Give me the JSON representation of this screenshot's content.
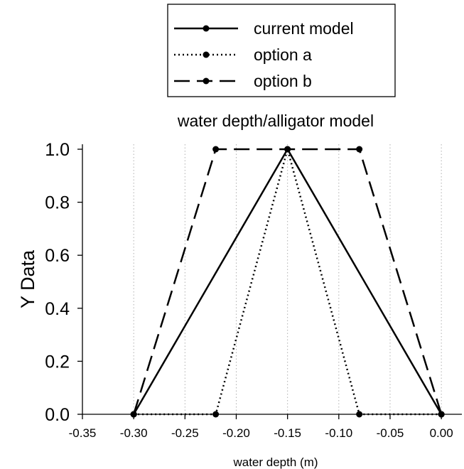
{
  "chart_data": {
    "type": "line",
    "title": "water depth/alligator model",
    "xlabel": "water depth (m)",
    "ylabel": "Y Data",
    "xlim": [
      -0.35,
      0.02
    ],
    "ylim": [
      0.0,
      1.0
    ],
    "x_ticks": [
      "-0.35",
      "-0.30",
      "-0.25",
      "-0.20",
      "-0.15",
      "-0.10",
      "-0.05",
      "0.00"
    ],
    "y_ticks": [
      "0.0",
      "0.2",
      "0.4",
      "0.6",
      "0.8",
      "1.0"
    ],
    "grid": "vertical dotted",
    "legend_position": "top",
    "series": [
      {
        "name": "current model",
        "style": "solid",
        "x": [
          -0.3,
          -0.15,
          0.0
        ],
        "y": [
          0.0,
          1.0,
          0.0
        ]
      },
      {
        "name": "option a",
        "style": "dotted",
        "x": [
          -0.3,
          -0.22,
          -0.15,
          -0.08,
          0.0
        ],
        "y": [
          0.0,
          0.0,
          1.0,
          0.0,
          0.0
        ]
      },
      {
        "name": "option b",
        "style": "dashed",
        "x": [
          -0.3,
          -0.22,
          -0.08,
          0.0
        ],
        "y": [
          0.0,
          1.0,
          1.0,
          0.0
        ]
      }
    ]
  }
}
